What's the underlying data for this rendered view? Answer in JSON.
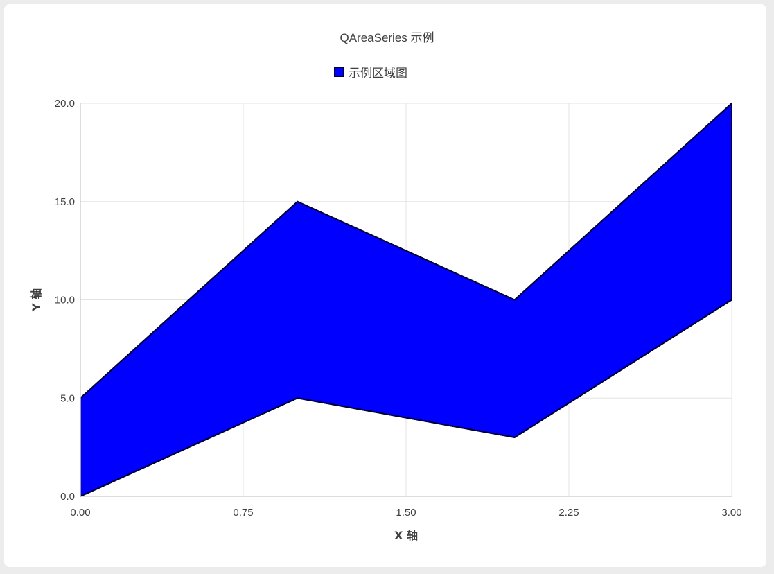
{
  "chart_data": {
    "type": "area",
    "title": "QAreaSeries 示例",
    "legend": {
      "position": "top",
      "entries": [
        "示例区域图"
      ]
    },
    "xlabel": "X 轴",
    "ylabel": "Y 轴",
    "xlim": [
      0,
      3
    ],
    "ylim": [
      0,
      20
    ],
    "x_ticks": [
      "0.00",
      "0.75",
      "1.50",
      "2.25",
      "3.00"
    ],
    "y_ticks": [
      "0.0",
      "5.0",
      "10.0",
      "15.0",
      "20.0"
    ],
    "grid": true,
    "series": [
      {
        "name": "示例区域图",
        "color": "#0000ff",
        "border_color": "#000033",
        "upper": {
          "x": [
            0,
            1,
            2,
            3
          ],
          "y": [
            5,
            15,
            10,
            20
          ]
        },
        "lower": {
          "x": [
            0,
            1,
            2,
            3
          ],
          "y": [
            0,
            5,
            3,
            10
          ]
        }
      }
    ]
  }
}
